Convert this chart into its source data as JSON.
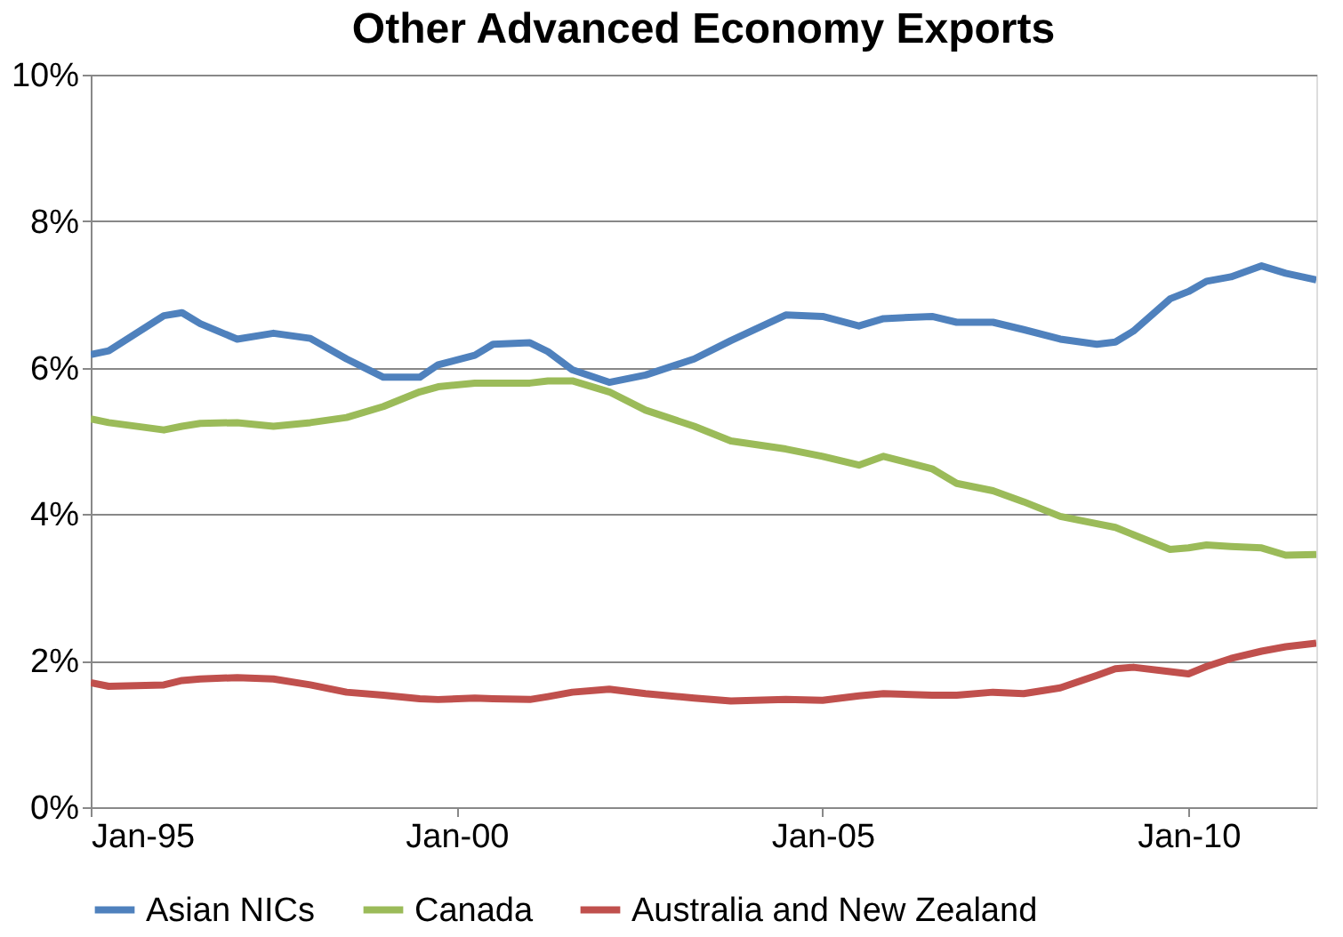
{
  "chart_data": {
    "type": "line",
    "title": "Other Advanced Economy Exports",
    "x": [
      "1995-01",
      "1995-04",
      "1996-01",
      "1996-04",
      "1996-07",
      "1997-01",
      "1997-07",
      "1998-01",
      "1998-07",
      "1999-01",
      "1999-07",
      "1999-10",
      "2000-04",
      "2000-07",
      "2001-01",
      "2001-04",
      "2001-08",
      "2002-02",
      "2002-08",
      "2003-04",
      "2003-10",
      "2004-07",
      "2005-01",
      "2005-07",
      "2005-11",
      "2006-07",
      "2006-11",
      "2007-05",
      "2007-10",
      "2008-04",
      "2008-10",
      "2009-01",
      "2009-04",
      "2009-10",
      "2010-01",
      "2010-04",
      "2010-08",
      "2011-01",
      "2011-05",
      "2011-10"
    ],
    "series": [
      {
        "name": "Asian NICs",
        "color": "#4f81bd",
        "values": [
          6.18,
          6.23,
          6.71,
          6.75,
          6.6,
          6.39,
          6.47,
          6.4,
          6.12,
          5.87,
          5.87,
          6.04,
          6.17,
          6.32,
          6.34,
          6.22,
          5.97,
          5.8,
          5.9,
          6.12,
          6.37,
          6.72,
          6.7,
          6.57,
          6.67,
          6.7,
          6.62,
          6.62,
          6.52,
          6.39,
          6.32,
          6.35,
          6.5,
          6.94,
          7.04,
          7.18,
          7.24,
          7.39,
          7.29,
          7.2
        ]
      },
      {
        "name": "Canada",
        "color": "#9bbb59",
        "values": [
          5.3,
          5.25,
          5.15,
          5.2,
          5.24,
          5.25,
          5.2,
          5.25,
          5.32,
          5.47,
          5.67,
          5.74,
          5.79,
          5.79,
          5.79,
          5.82,
          5.82,
          5.67,
          5.42,
          5.2,
          5.0,
          4.89,
          4.79,
          4.67,
          4.79,
          4.62,
          4.42,
          4.32,
          4.17,
          3.97,
          3.87,
          3.82,
          3.72,
          3.52,
          3.54,
          3.58,
          3.56,
          3.54,
          3.44,
          3.45
        ]
      },
      {
        "name": "Australia and New Zealand",
        "color": "#c0504d",
        "values": [
          1.7,
          1.65,
          1.67,
          1.73,
          1.75,
          1.77,
          1.75,
          1.67,
          1.57,
          1.53,
          1.48,
          1.47,
          1.49,
          1.48,
          1.47,
          1.51,
          1.57,
          1.61,
          1.55,
          1.49,
          1.45,
          1.47,
          1.46,
          1.52,
          1.55,
          1.53,
          1.53,
          1.57,
          1.55,
          1.63,
          1.8,
          1.89,
          1.91,
          1.85,
          1.82,
          1.92,
          2.03,
          2.13,
          2.19,
          2.24
        ]
      }
    ],
    "xlim": [
      "1995-01",
      "2011-10"
    ],
    "xticks": [
      {
        "value": "1995-01",
        "label": "Jan-95"
      },
      {
        "value": "2000-01",
        "label": "Jan-00"
      },
      {
        "value": "2005-01",
        "label": "Jan-05"
      },
      {
        "value": "2010-01",
        "label": "Jan-10"
      }
    ],
    "ylim": [
      0,
      10
    ],
    "yticks": [
      {
        "value": 0,
        "label": "0%"
      },
      {
        "value": 2,
        "label": "2%"
      },
      {
        "value": 4,
        "label": "4%"
      },
      {
        "value": 6,
        "label": "6%"
      },
      {
        "value": 8,
        "label": "8%"
      },
      {
        "value": 10,
        "label": "10%"
      }
    ],
    "grid": "y",
    "legend": "bottom",
    "marker": "none",
    "line_style": "solid"
  }
}
